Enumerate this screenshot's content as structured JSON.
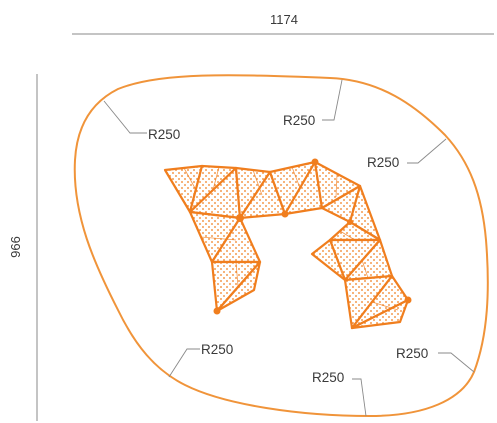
{
  "dimensions": {
    "width_label": "1174",
    "height_label": "966"
  },
  "radius_labels": [
    "R250",
    "R250",
    "R250",
    "R250",
    "R250",
    "R250"
  ],
  "colors": {
    "outline": "#f0943a",
    "structure": "#f07e1e",
    "dimension": "#8a8a8a",
    "text": "#3a3a3a"
  }
}
